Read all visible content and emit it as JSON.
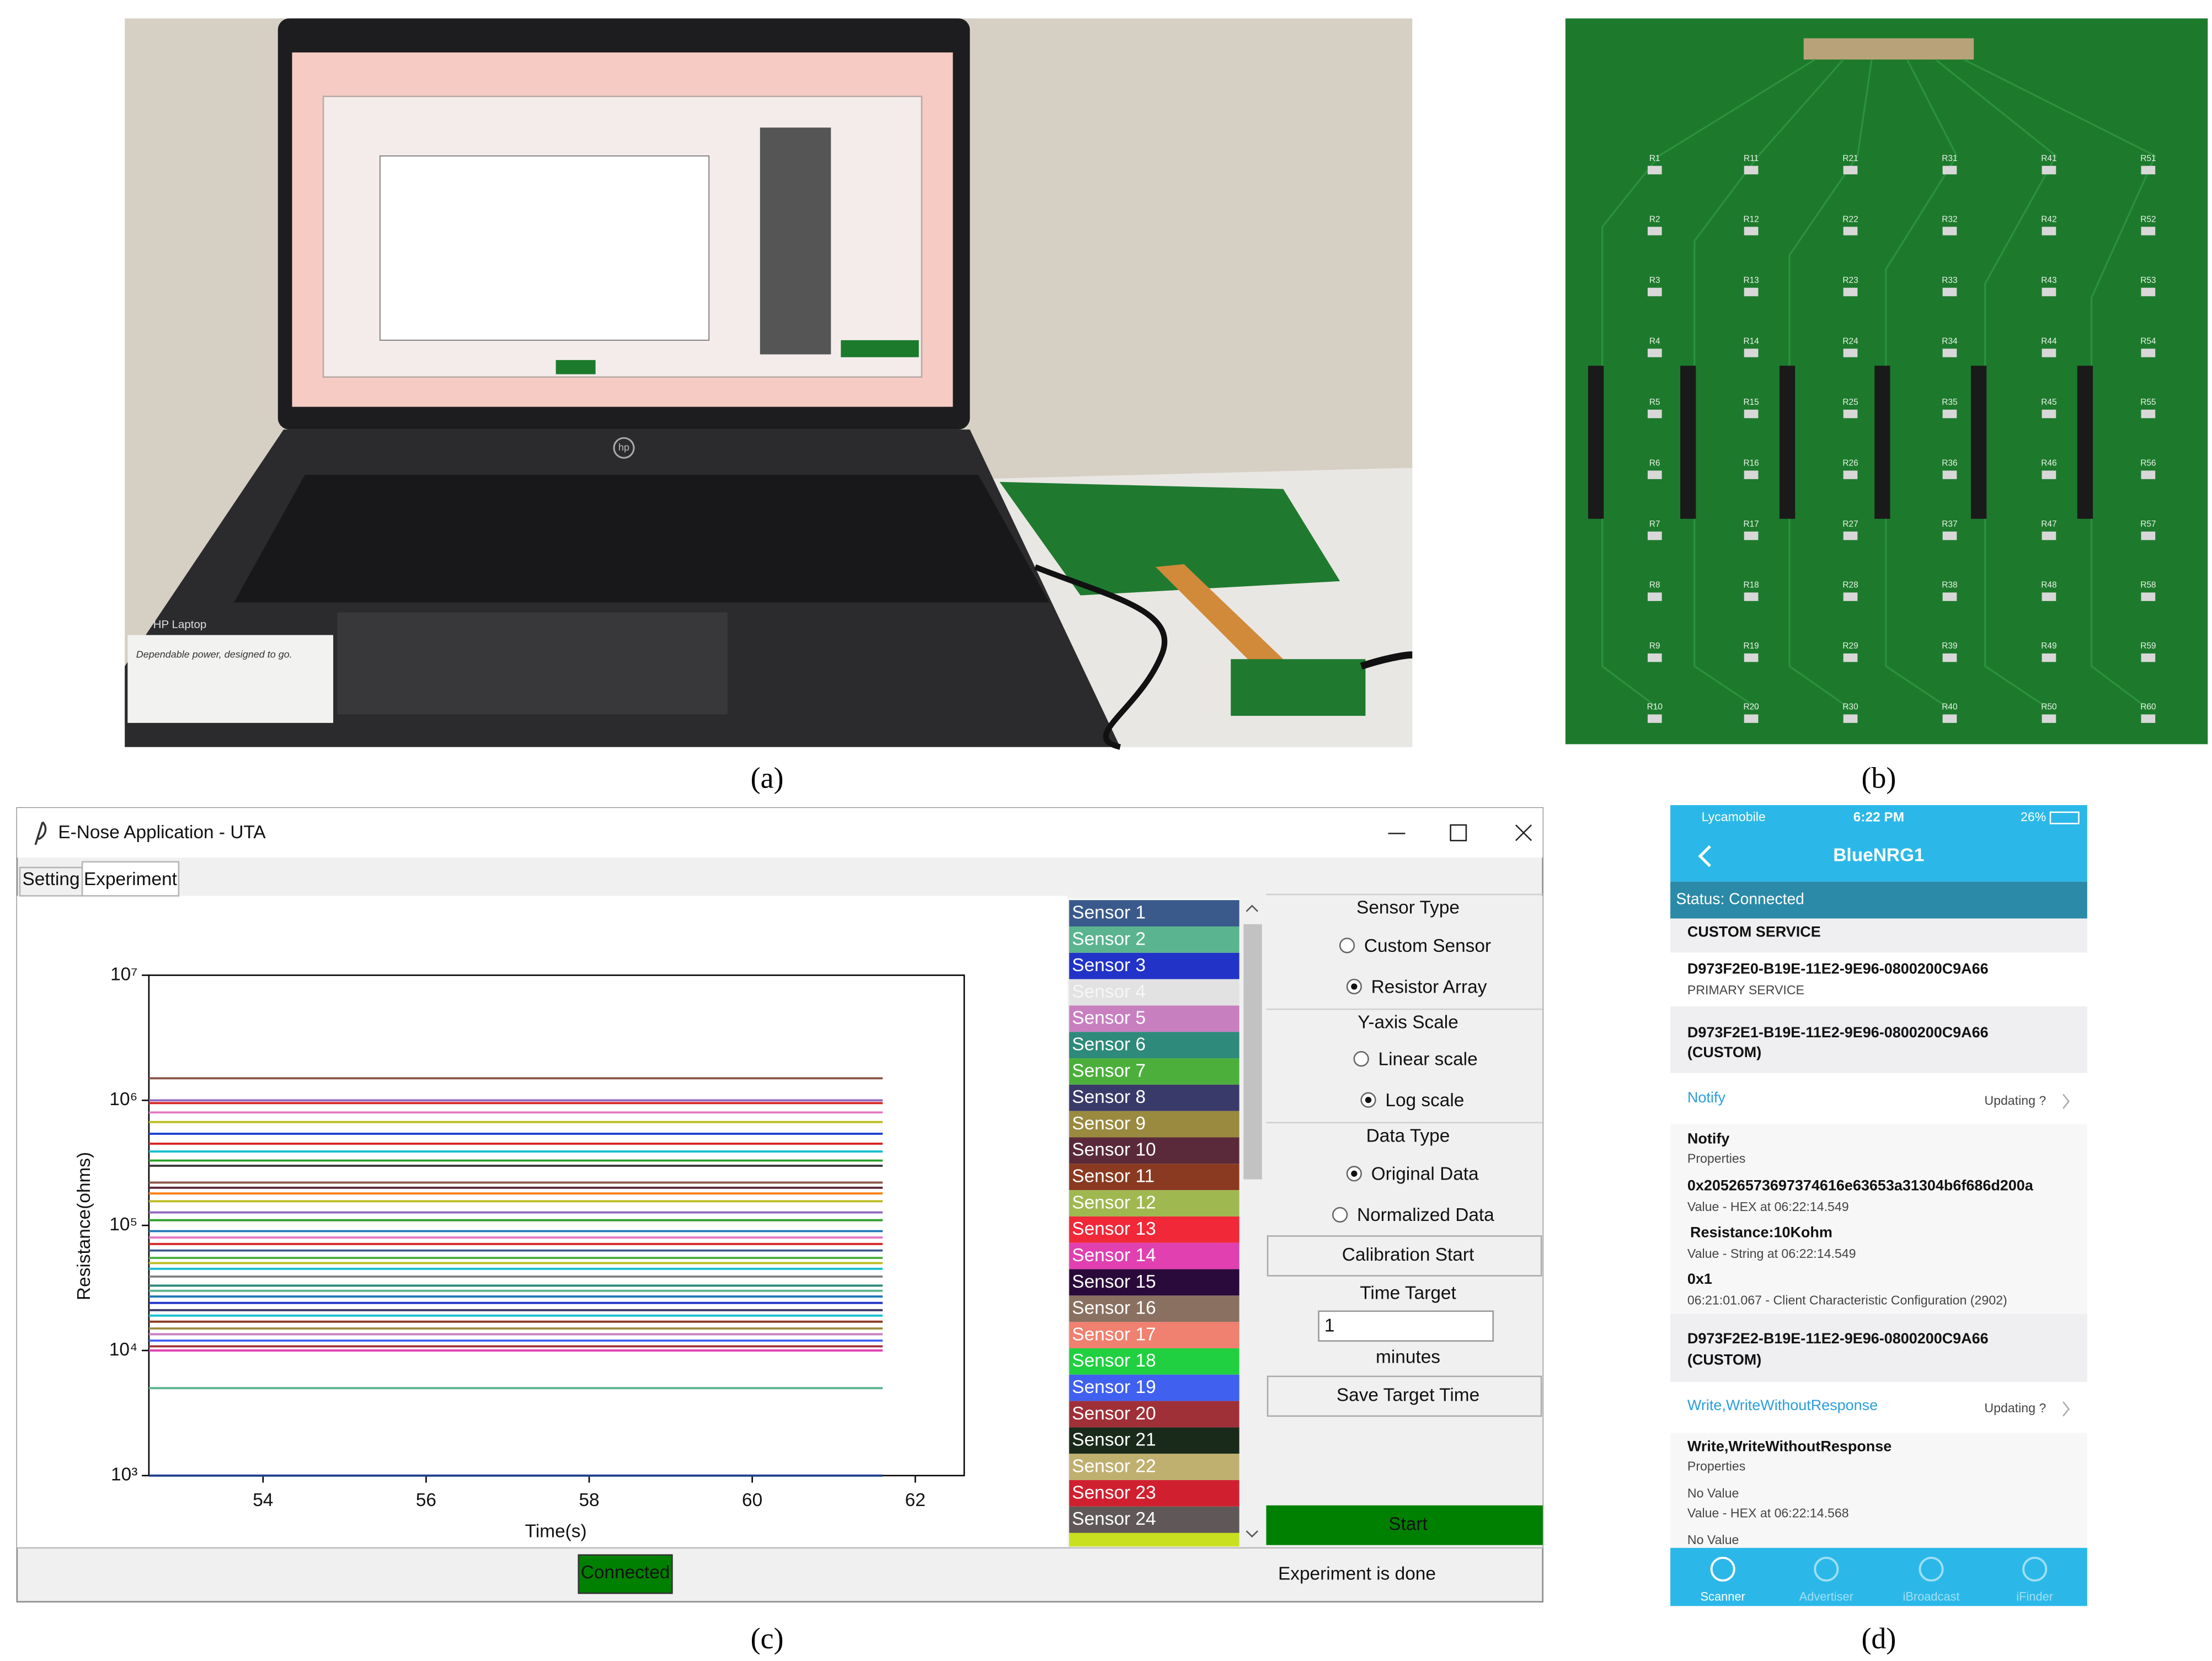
{
  "panels": {
    "a": "(a)",
    "b": "(b)",
    "c": "(c)",
    "d": "(d)"
  },
  "photo_a": {
    "logo": "hp",
    "sticker_brand": "HP Laptop",
    "sticker_text": "Dependable power, designed to go."
  },
  "pcb": {
    "labels": [
      "R1",
      "R2",
      "R3",
      "R4",
      "R5",
      "R6",
      "R7",
      "R8",
      "R9",
      "R10",
      "R11",
      "R12",
      "R13",
      "R14",
      "R15",
      "R16",
      "R17",
      "R18",
      "R19",
      "R20",
      "R21",
      "R22",
      "R23",
      "R24",
      "R25",
      "R26",
      "R27",
      "R28",
      "R29",
      "R30",
      "R31",
      "R32",
      "R33",
      "R34",
      "R35",
      "R36",
      "R37",
      "R38",
      "R39",
      "R40",
      "R41",
      "R42",
      "R43",
      "R44",
      "R45",
      "R46",
      "R47",
      "R48",
      "R49",
      "R50",
      "R51",
      "R52",
      "R53",
      "R54",
      "R55",
      "R56",
      "R57",
      "R58",
      "R59",
      "R60"
    ]
  },
  "app": {
    "title": "E-Nose Application  -  UTA",
    "tabs": [
      "Setting",
      "Experiment"
    ],
    "active_tab": 1,
    "plot": {
      "type": "line",
      "ylabel": "Resistance(ohms)",
      "xlabel": "Time(s)",
      "x": [
        52.6,
        61.6
      ],
      "xlim": [
        52.6,
        62.6
      ],
      "xticks": [
        54,
        56,
        58,
        60,
        62
      ],
      "ylim": [
        1000,
        10000000
      ],
      "yscale": "log",
      "yticks": [
        {
          "value": 1000,
          "label": "10³"
        },
        {
          "value": 10000,
          "label": "10⁴"
        },
        {
          "value": 100000,
          "label": "10⁵"
        },
        {
          "value": 1000000,
          "label": "10⁶"
        },
        {
          "value": 10000000,
          "label": "10⁷"
        }
      ],
      "series": [
        {
          "color": "#8c564b",
          "values": [
            1500000,
            1500000
          ]
        },
        {
          "color": "#9467bd",
          "values": [
            1000000,
            1000000
          ]
        },
        {
          "color": "#d62728",
          "values": [
            950000,
            950000
          ]
        },
        {
          "color": "#e377c2",
          "values": [
            800000,
            800000
          ]
        },
        {
          "color": "#bcbd22",
          "values": [
            670000,
            670000
          ]
        },
        {
          "color": "#1f3fd0",
          "values": [
            540000,
            540000
          ]
        },
        {
          "color": "#d62728",
          "values": [
            450000,
            450000
          ]
        },
        {
          "color": "#17becf",
          "values": [
            390000,
            390000
          ]
        },
        {
          "color": "#2ca02c",
          "values": [
            330000,
            330000
          ]
        },
        {
          "color": "#3a3a3a",
          "values": [
            300000,
            300000
          ]
        },
        {
          "color": "#8c564b",
          "values": [
            220000,
            220000
          ]
        },
        {
          "color": "#5a2a3a",
          "values": [
            200000,
            200000
          ]
        },
        {
          "color": "#ff7f0e",
          "values": [
            180000,
            180000
          ]
        },
        {
          "color": "#bcbd22",
          "values": [
            156000,
            156000
          ]
        },
        {
          "color": "#9467bd",
          "values": [
            127000,
            127000
          ]
        },
        {
          "color": "#2ca02c",
          "values": [
            110000,
            110000
          ]
        },
        {
          "color": "#1f77b4",
          "values": [
            90000,
            90000
          ]
        },
        {
          "color": "#e377c2",
          "values": [
            80000,
            80000
          ]
        },
        {
          "color": "#d62728",
          "values": [
            71000,
            71000
          ]
        },
        {
          "color": "#3a5a8c",
          "values": [
            63000,
            63000
          ]
        },
        {
          "color": "#4caf3c",
          "values": [
            55000,
            55000
          ]
        },
        {
          "color": "#bcbd22",
          "values": [
            50000,
            50000
          ]
        },
        {
          "color": "#17becf",
          "values": [
            45000,
            45000
          ]
        },
        {
          "color": "#7f7f7f",
          "values": [
            39000,
            39000
          ]
        },
        {
          "color": "#2e8a7a",
          "values": [
            33000,
            33000
          ]
        },
        {
          "color": "#5ab48f",
          "values": [
            30000,
            30000
          ]
        },
        {
          "color": "#1f77b4",
          "values": [
            27000,
            27000
          ]
        },
        {
          "color": "#2233c8",
          "values": [
            24000,
            24000
          ]
        },
        {
          "color": "#3a3a6a",
          "values": [
            21000,
            21000
          ]
        },
        {
          "color": "#17becf",
          "values": [
            19000,
            19000
          ]
        },
        {
          "color": "#8a3a20",
          "values": [
            17000,
            17000
          ]
        },
        {
          "color": "#9a8a40",
          "values": [
            15000,
            15000
          ]
        },
        {
          "color": "#c87fc0",
          "values": [
            13500,
            13500
          ]
        },
        {
          "color": "#4060f0",
          "values": [
            12000,
            12000
          ]
        },
        {
          "color": "#a03038",
          "values": [
            10800,
            10800
          ]
        },
        {
          "color": "#e040b0",
          "values": [
            10000,
            10000
          ]
        },
        {
          "color": "#5ab48f",
          "values": [
            5000,
            5000
          ]
        },
        {
          "color": "#1f3f8c",
          "values": [
            1000,
            1000
          ]
        }
      ]
    },
    "sensors": [
      {
        "name": "Sensor 1",
        "color": "#3a5a8c"
      },
      {
        "name": "Sensor 2",
        "color": "#5ab48f"
      },
      {
        "name": "Sensor 3",
        "color": "#2233c8"
      },
      {
        "name": "Sensor 4",
        "color": "#e2e2e2"
      },
      {
        "name": "Sensor 5",
        "color": "#c87fc0"
      },
      {
        "name": "Sensor 6",
        "color": "#2e8a7a"
      },
      {
        "name": "Sensor 7",
        "color": "#4caf3c"
      },
      {
        "name": "Sensor 8",
        "color": "#3a3a6a"
      },
      {
        "name": "Sensor 9",
        "color": "#9a8a40"
      },
      {
        "name": "Sensor 10",
        "color": "#5a2a3a"
      },
      {
        "name": "Sensor 11",
        "color": "#8a3a20"
      },
      {
        "name": "Sensor 12",
        "color": "#a0b850"
      },
      {
        "name": "Sensor 13",
        "color": "#f02838"
      },
      {
        "name": "Sensor 14",
        "color": "#e040b0"
      },
      {
        "name": "Sensor 15",
        "color": "#2a0a3a"
      },
      {
        "name": "Sensor 16",
        "color": "#8a7060"
      },
      {
        "name": "Sensor 17",
        "color": "#f08070"
      },
      {
        "name": "Sensor 18",
        "color": "#20d040"
      },
      {
        "name": "Sensor 19",
        "color": "#4060f0"
      },
      {
        "name": "Sensor 20",
        "color": "#a03038"
      },
      {
        "name": "Sensor 21",
        "color": "#1a2a1a"
      },
      {
        "name": "Sensor 22",
        "color": "#c0b070"
      },
      {
        "name": "Sensor 23",
        "color": "#d02030"
      },
      {
        "name": "Sensor 24",
        "color": "#605858"
      }
    ],
    "sensor_type": {
      "label": "Sensor Type",
      "options": [
        "Custom Sensor",
        "Resistor Array"
      ],
      "selected": 1
    },
    "y_axis_scale": {
      "label": "Y-axis Scale",
      "options": [
        "Linear scale",
        "Log scale"
      ],
      "selected": 1
    },
    "data_type": {
      "label": "Data Type",
      "options": [
        "Original Data",
        "Normalized Data"
      ],
      "selected": 0
    },
    "calibration_button": "Calibration Start",
    "time_target": {
      "label": "Time Target",
      "value": "1",
      "unit": "minutes"
    },
    "save_button": "Save Target Time",
    "start_button": "Start",
    "connection": "Connected",
    "status": "Experiment is done"
  },
  "phone": {
    "carrier": "Lycamobile",
    "time": "6:22 PM",
    "battery": "26%",
    "title": "BlueNRG1",
    "status": "Status: Connected",
    "service_header": "CUSTOM SERVICE",
    "primary_uuid": "D973F2E0-B19E-11E2-9E96-0800200C9A66",
    "primary_label": "PRIMARY SERVICE",
    "char1_uuid": "D973F2E1-B19E-11E2-9E96-0800200C9A66",
    "char1_kind": "(CUSTOM)",
    "char1_action": "Notify",
    "char1_updating": "Updating ?",
    "char1_prop": "Notify",
    "char1_prop_label": "Properties",
    "hex_value": "0x20526573697374616e63653a31304b6f686d200a",
    "hex_time": "Value - HEX at 06:22:14.549",
    "string_value": "Resistance:10Kohm",
    "string_time": "Value - String at 06:22:14.549",
    "config_value": "0x1",
    "config_time": "06:21:01.067 - Client Characteristic Configuration (2902)",
    "char2_uuid": "D973F2E2-B19E-11E2-9E96-0800200C9A66",
    "char2_kind": "(CUSTOM)",
    "char2_action": "Write,WriteWithoutResponse",
    "char2_updating": "Updating ?",
    "char2_prop": "Write,WriteWithoutResponse",
    "char2_prop_label": "Properties",
    "no_value_1": "No Value",
    "hex_time_2": "Value - HEX at 06:22:14.568",
    "no_value_2": "No Value",
    "tabs": [
      "Scanner",
      "Advertiser",
      "iBroadcast",
      "iFinder"
    ]
  }
}
